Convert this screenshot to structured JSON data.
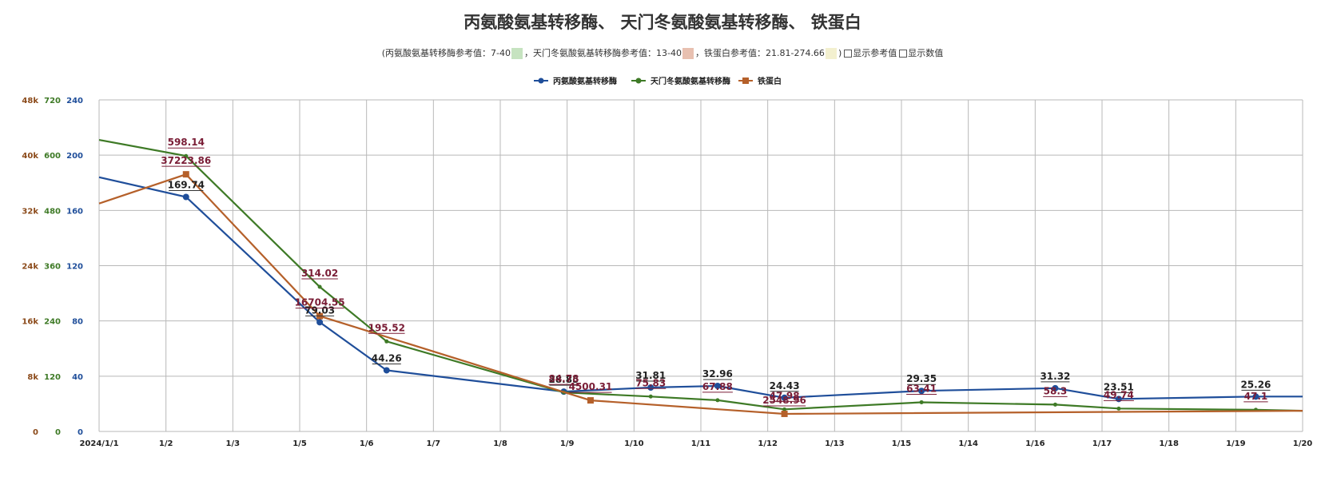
{
  "chart_data": {
    "type": "line",
    "title": "丙氨酸氨基转移酶、 天门冬氨酸氨基转移酶、 铁蛋白",
    "reference": {
      "items": [
        {
          "label": "(丙氨酸氨基转移酶参考值：7-40",
          "color": "#c6e3c0"
        },
        {
          "label": "，天门冬氨酸氨基转移酶参考值：13-40",
          "color": "#e8c0b0"
        },
        {
          "label": "，铁蛋白参考值：21.81-274.66",
          "color": "#f3f0cf"
        }
      ],
      "toggles": [
        "显示参考值",
        "显示数值"
      ],
      "close": ")"
    },
    "x_ticks": [
      "2024/1/1",
      "1/2",
      "1/3",
      "1/5",
      "1/6",
      "1/7",
      "1/8",
      "1/9",
      "1/10",
      "1/11",
      "1/12",
      "1/13",
      "1/15",
      "1/14",
      "1/16",
      "1/17",
      "1/18",
      "1/19",
      "1/20"
    ],
    "y_axes": [
      {
        "ticks": [
          "0",
          "8k",
          "16k",
          "24k",
          "32k",
          "40k",
          "48k"
        ],
        "range": [
          0,
          48000
        ],
        "color": "#8b4a1a"
      },
      {
        "ticks": [
          "0",
          "120",
          "240",
          "360",
          "480",
          "600",
          "720"
        ],
        "range": [
          0,
          720
        ],
        "color": "#3e7a26"
      },
      {
        "ticks": [
          "0",
          "40",
          "80",
          "120",
          "160",
          "200",
          "240"
        ],
        "range": [
          0,
          240
        ],
        "color": "#1f4e9a"
      }
    ],
    "series": [
      {
        "name": "丙氨酸氨基转移酶",
        "color": "#1f4e9a",
        "axis": 2,
        "points": [
          {
            "x": 0,
            "y": 184,
            "label": ""
          },
          {
            "x": 1.3,
            "y": 169.74,
            "label": "169.74"
          },
          {
            "x": 3.3,
            "y": 79.03,
            "label": "79.03"
          },
          {
            "x": 4.3,
            "y": 44.26,
            "label": "44.26"
          },
          {
            "x": 6.95,
            "y": 28.85,
            "label": "28.85"
          },
          {
            "x": 8.25,
            "y": 31.81,
            "label": "31.81"
          },
          {
            "x": 9.25,
            "y": 32.96,
            "label": "32.96"
          },
          {
            "x": 10.25,
            "y": 24.43,
            "label": "24.43"
          },
          {
            "x": 12.3,
            "y": 29.35,
            "label": "29.35"
          },
          {
            "x": 14.3,
            "y": 31.32,
            "label": "31.32"
          },
          {
            "x": 15.25,
            "y": 23.51,
            "label": "23.51"
          },
          {
            "x": 17.3,
            "y": 25.26,
            "label": "25.26"
          },
          {
            "x": 18,
            "y": 25.26,
            "label": ""
          }
        ]
      },
      {
        "name": "天门冬氨酸氨基转移酶",
        "color": "#3e7a26",
        "axis": 1,
        "points": [
          {
            "x": 0,
            "y": 633,
            "label": ""
          },
          {
            "x": 1.3,
            "y": 598.14,
            "label": "598.14"
          },
          {
            "x": 3.3,
            "y": 314.02,
            "label": "314.02"
          },
          {
            "x": 4.3,
            "y": 195.52,
            "label": "195.52"
          },
          {
            "x": 6.95,
            "y": 84.78,
            "label": "84.78"
          },
          {
            "x": 8.25,
            "y": 75.83,
            "label": "75.83"
          },
          {
            "x": 9.25,
            "y": 67.88,
            "label": "67.88"
          },
          {
            "x": 10.25,
            "y": 47.98,
            "label": "47.98"
          },
          {
            "x": 12.3,
            "y": 63.41,
            "label": "63.41"
          },
          {
            "x": 14.3,
            "y": 58.3,
            "label": "58.3"
          },
          {
            "x": 15.25,
            "y": 49.74,
            "label": "49.74"
          },
          {
            "x": 17.3,
            "y": 47.1,
            "label": "47.1"
          },
          {
            "x": 18,
            "y": 45,
            "label": ""
          }
        ]
      },
      {
        "name": "铁蛋白",
        "color": "#b5602a",
        "axis": 0,
        "points": [
          {
            "x": 0,
            "y": 33000,
            "label": ""
          },
          {
            "x": 1.3,
            "y": 37223.86,
            "label": "37223.86"
          },
          {
            "x": 3.3,
            "y": 16704.55,
            "label": "16704.55"
          },
          {
            "x": 7.35,
            "y": 4500.31,
            "label": "4500.31"
          },
          {
            "x": 10.25,
            "y": 2548.96,
            "label": "2548.96"
          },
          {
            "x": 18,
            "y": 3000,
            "label": ""
          }
        ]
      }
    ],
    "legend_position": "top-center",
    "grid": true
  }
}
